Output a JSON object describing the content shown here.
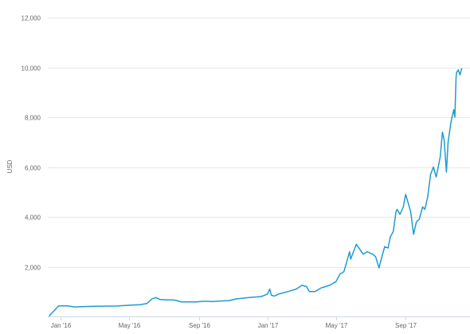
{
  "chart_data": {
    "type": "line",
    "title": "",
    "xlabel": "",
    "ylabel": "USD",
    "ylim": [
      0,
      12000
    ],
    "yticks": [
      2000,
      4000,
      6000,
      8000,
      10000,
      12000
    ],
    "ytick_labels": [
      "2,000",
      "4,000",
      "6,000",
      "8,000",
      "10,000",
      "12,000"
    ],
    "xtick_dates": [
      "2016-01-01",
      "2016-05-01",
      "2016-09-01",
      "2017-01-01",
      "2017-05-01",
      "2017-09-01"
    ],
    "xtick_labels": [
      "Jan '16",
      "May '16",
      "Sep '16",
      "Jan '17",
      "May '17",
      "Sep '17"
    ],
    "xlim": [
      "2015-12-12",
      "2017-12-11"
    ],
    "grid": true,
    "legend": "none",
    "series": [
      {
        "color": "#1f9bd1",
        "x": [
          "2015-12-12",
          "2015-12-28",
          "2016-01-05",
          "2016-01-15",
          "2016-01-25",
          "2016-02-15",
          "2016-03-01",
          "2016-03-20",
          "2016-04-10",
          "2016-05-01",
          "2016-05-20",
          "2016-06-01",
          "2016-06-10",
          "2016-06-17",
          "2016-06-25",
          "2016-07-05",
          "2016-07-20",
          "2016-08-02",
          "2016-08-10",
          "2016-08-25",
          "2016-09-10",
          "2016-09-25",
          "2016-10-10",
          "2016-10-25",
          "2016-11-05",
          "2016-11-20",
          "2016-12-05",
          "2016-12-20",
          "2016-12-31",
          "2017-01-04",
          "2017-01-07",
          "2017-01-12",
          "2017-01-20",
          "2017-02-05",
          "2017-02-20",
          "2017-03-02",
          "2017-03-10",
          "2017-03-15",
          "2017-03-25",
          "2017-04-05",
          "2017-04-20",
          "2017-05-01",
          "2017-05-08",
          "2017-05-15",
          "2017-05-20",
          "2017-05-25",
          "2017-05-27",
          "2017-06-06",
          "2017-06-12",
          "2017-06-18",
          "2017-06-25",
          "2017-07-05",
          "2017-07-10",
          "2017-07-16",
          "2017-07-20",
          "2017-07-26",
          "2017-08-01",
          "2017-08-05",
          "2017-08-10",
          "2017-08-15",
          "2017-08-17",
          "2017-08-22",
          "2017-08-28",
          "2017-09-01",
          "2017-09-05",
          "2017-09-10",
          "2017-09-15",
          "2017-09-20",
          "2017-09-25",
          "2017-10-01",
          "2017-10-05",
          "2017-10-10",
          "2017-10-15",
          "2017-10-20",
          "2017-10-25",
          "2017-11-01",
          "2017-11-05",
          "2017-11-08",
          "2017-11-12",
          "2017-11-15",
          "2017-11-20",
          "2017-11-25",
          "2017-11-27",
          "2017-11-29",
          "2017-11-30",
          "2017-12-03",
          "2017-12-06",
          "2017-12-09"
        ],
        "y": [
          30,
          420,
          430,
          420,
          380,
          400,
          410,
          415,
          420,
          450,
          470,
          520,
          700,
          760,
          680,
          670,
          660,
          580,
          590,
          580,
          610,
          600,
          620,
          640,
          700,
          740,
          770,
          800,
          900,
          1100,
          850,
          820,
          900,
          1000,
          1100,
          1250,
          1200,
          1000,
          1000,
          1150,
          1250,
          1400,
          1700,
          1800,
          2200,
          2600,
          2300,
          2900,
          2700,
          2500,
          2600,
          2500,
          2400,
          1950,
          2300,
          2800,
          2750,
          3200,
          3400,
          4200,
          4300,
          4100,
          4400,
          4900,
          4600,
          4200,
          3300,
          3800,
          3900,
          4400,
          4300,
          4800,
          5700,
          6000,
          5600,
          6400,
          7400,
          7100,
          5800,
          7000,
          7800,
          8300,
          8000,
          9600,
          9800,
          9900,
          9700,
          9950
        ]
      }
    ]
  }
}
